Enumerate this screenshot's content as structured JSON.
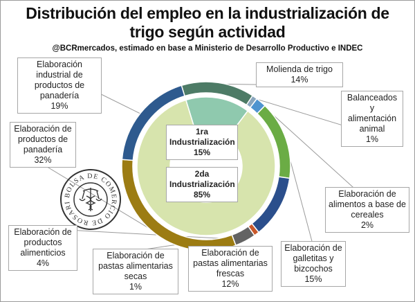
{
  "title": "Distribución del empleo en la industrialización de trigo según actividad",
  "subtitle": "@BCRmercados,  estimado en base a Ministerio de Desarrollo Productivo e INDEC",
  "seal_text": "BOLSA DE COMERCIO DE ROSARIO",
  "chart_data": {
    "type": "pie",
    "inner_ring": [
      {
        "name": "1ra Industrialización",
        "value": 15,
        "label": "15%",
        "color": "#8fc9ae"
      },
      {
        "name": "2da Industrialización",
        "value": 85,
        "label": "85%",
        "color": "#d7e4ad"
      }
    ],
    "outer_ring": [
      {
        "name": "Molienda de trigo",
        "value": 14,
        "label": "14%",
        "color": "#4d7b66"
      },
      {
        "name": "Balanceados y alimentación animal",
        "value": 1,
        "label": "1%",
        "color": "#8aa6bd"
      },
      {
        "name": "Elaboración de alimentos a base de cereales",
        "value": 2,
        "label": "2%",
        "color": "#4f94cf"
      },
      {
        "name": "Elaboración de galletitas y bizcochos",
        "value": 15,
        "label": "15%",
        "color": "#6bac45"
      },
      {
        "name": "Elaboración de pastas alimentarias frescas",
        "value": 12,
        "label": "12%",
        "color": "#2b4f8c"
      },
      {
        "name": "Elaboración de pastas alimentarias secas",
        "value": 1,
        "label": "1%",
        "color": "#c9582a"
      },
      {
        "name": "Elaboración de productos alimenticios",
        "value": 4,
        "label": "4%",
        "color": "#636363"
      },
      {
        "name": "Elaboración de productos de panadería",
        "value": 32,
        "label": "32%",
        "color": "#9c7c13"
      },
      {
        "name": "Elaboración industrial de productos de panadería",
        "value": 19,
        "label": "19%",
        "color": "#2e5a8e"
      }
    ]
  },
  "labels": {
    "molienda": [
      "Molienda de trigo",
      "14%"
    ],
    "balanceados": [
      "Balanceados y",
      "alimentación",
      "animal",
      "1%"
    ],
    "cereales": [
      "Elaboración de",
      "alimentos a base de",
      "cereales",
      "2%"
    ],
    "galletitas": [
      "Elaboración de",
      "galletitas y",
      "bizcochos",
      "15%"
    ],
    "frescas": [
      "Elaboración de",
      "pastas alimentarias",
      "frescas",
      "12%"
    ],
    "secas": [
      "Elaboración de",
      "pastas alimentarias",
      "secas",
      "1%"
    ],
    "alimenticios": [
      "Elaboración de",
      "productos",
      "alimenticios",
      "4%"
    ],
    "panaderia": [
      "Elaboración de",
      "productos de",
      "panadería",
      "32%"
    ],
    "industrial": [
      "Elaboración",
      "industrial de",
      "productos de",
      "panadería",
      "19%"
    ],
    "primera": [
      "1ra",
      "Industrialización",
      "15%"
    ],
    "segunda": [
      "2da",
      "Industrialización",
      "85%"
    ]
  }
}
